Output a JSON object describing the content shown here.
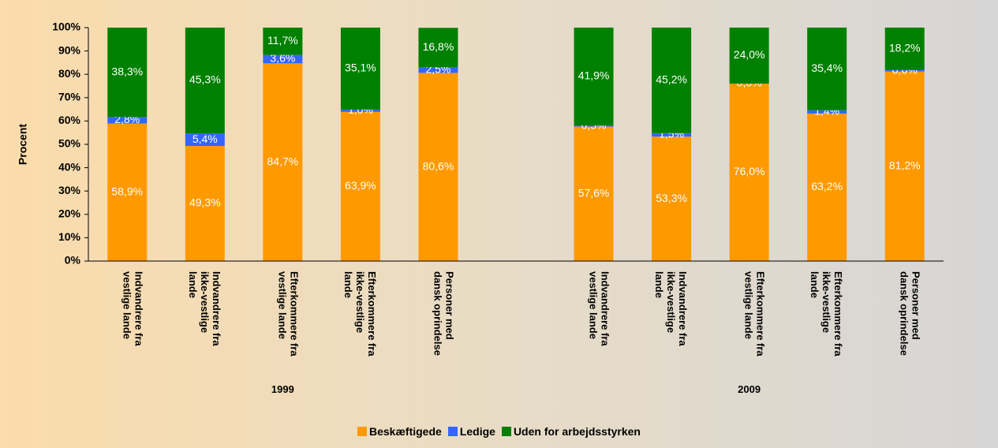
{
  "chart_data": {
    "type": "stacked-bar",
    "y_label": "Procent",
    "categories": [
      "Indvandrere fra vestlige lande",
      "Indvandrere fra ikke-vestlige lande",
      "Efterkommere fra vestlige lande",
      "Efterkommere fra ikke-vestlige lande",
      "Personer med dansk oprindelse",
      null,
      "Indvandrere fra vestlige lande",
      "Indvandrere fra ikke-vestlige lande",
      "Efterkommere fra vestlige lande",
      "Efterkommere fra ikke-vestlige lande",
      "Personer med dansk oprindelse"
    ],
    "groups": [
      "1999",
      "2009"
    ],
    "series": [
      {
        "name": "Beskæftigede",
        "color": "#ff9900",
        "values": [
          58.9,
          49.3,
          84.7,
          63.9,
          80.6,
          null,
          57.6,
          53.3,
          76.0,
          63.2,
          81.2
        ],
        "value_labels": [
          "58,9%",
          "49,3%",
          "84,7%",
          "63,9%",
          "80,6%",
          null,
          "57,6%",
          "53,3%",
          "76,0%",
          "63,2%",
          "81,2%"
        ]
      },
      {
        "name": "Ledige",
        "color": "#3366ff",
        "values": [
          2.8,
          5.4,
          3.6,
          1.0,
          2.5,
          null,
          0.5,
          1.5,
          0.0,
          1.4,
          0.6
        ],
        "value_labels": [
          "2,8%",
          "5,4%",
          "3,6%",
          "1,0%",
          "2,5%",
          null,
          "0,5%",
          "1,5%",
          "0,0%",
          "1,4%",
          "0,6%"
        ]
      },
      {
        "name": "Uden for arbejdsstyrken",
        "color": "#008000",
        "values": [
          38.3,
          45.3,
          11.7,
          35.1,
          16.8,
          null,
          41.9,
          45.2,
          24.0,
          35.4,
          18.2
        ],
        "value_labels": [
          "38,3%",
          "45,3%",
          "11,7%",
          "35,1%",
          "16,8%",
          null,
          "41,9%",
          "45,2%",
          "24,0%",
          "35,4%",
          "18,2%"
        ]
      }
    ],
    "ylim": [
      0,
      100
    ],
    "yticks": [
      {
        "value": 0,
        "label": "0%"
      },
      {
        "value": 10,
        "label": "10%"
      },
      {
        "value": 20,
        "label": "20%"
      },
      {
        "value": 30,
        "label": "30%"
      },
      {
        "value": 40,
        "label": "40%"
      },
      {
        "value": 50,
        "label": "50%"
      },
      {
        "value": 60,
        "label": "60%"
      },
      {
        "value": 70,
        "label": "70%"
      },
      {
        "value": 80,
        "label": "80%"
      },
      {
        "value": 90,
        "label": "90%"
      },
      {
        "value": 100,
        "label": "100%"
      }
    ],
    "legend": "bottom"
  }
}
